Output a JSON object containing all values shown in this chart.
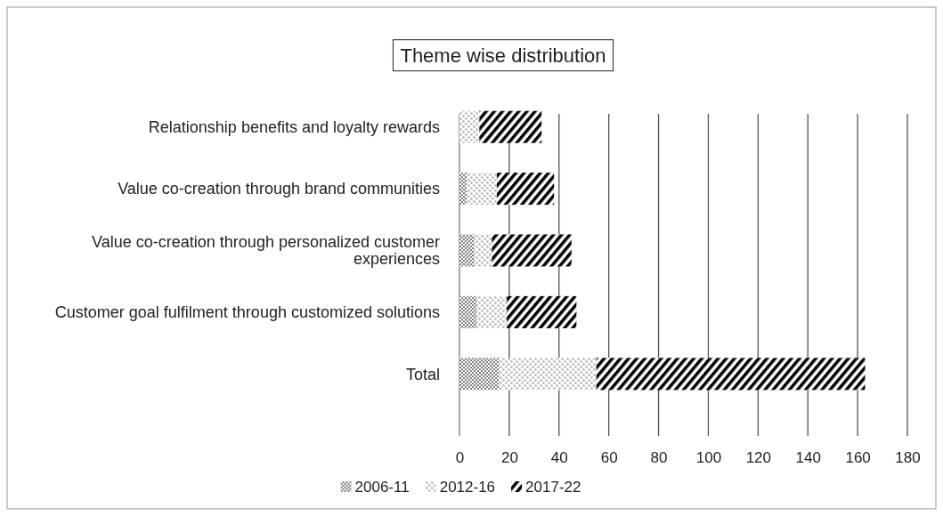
{
  "chart_data": {
    "type": "bar",
    "orientation": "horizontal",
    "stacked": true,
    "title": "Theme wise distribution",
    "categories": [
      "Relationship benefits and loyalty rewards",
      "Value co-creation through brand communities",
      "Value co-creation through personalized customer experiences",
      "Customer goal fulfilment through customized solutions",
      "Total"
    ],
    "series": [
      {
        "name": "2006-11",
        "color": "#808080",
        "values": [
          0,
          3,
          6,
          7,
          16
        ]
      },
      {
        "name": "2012-16",
        "color": "#b0b0b0",
        "values": [
          8,
          12,
          7,
          12,
          39
        ]
      },
      {
        "name": "2017-22",
        "color": "#000000",
        "values": [
          25,
          23,
          32,
          28,
          108
        ]
      }
    ],
    "xlim": [
      0,
      180
    ],
    "xticks": [
      0,
      20,
      40,
      60,
      80,
      100,
      120,
      140,
      160,
      180
    ],
    "grid": "x",
    "legend": "bottom"
  }
}
